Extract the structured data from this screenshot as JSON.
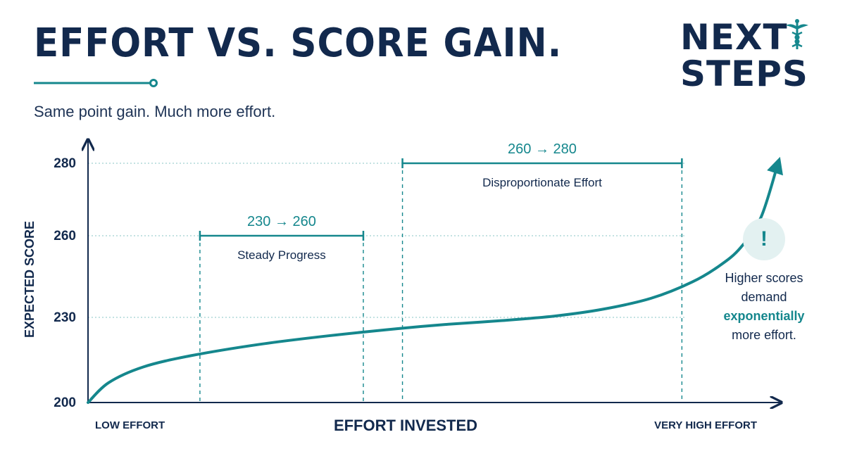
{
  "header": {
    "title": "EFFORT VS. SCORE GAIN.",
    "subtitle": "Same point gain. Much more effort."
  },
  "logo": {
    "line1": "NEXT",
    "line2": "STEPS",
    "icon": "caduceus-icon"
  },
  "note": {
    "icon_text": "!",
    "lines": [
      "Higher scores",
      "demand",
      "exponentially",
      "more effort."
    ],
    "accent_line_index": 2
  },
  "colors": {
    "navy": "#12294d",
    "teal": "#15878d",
    "grid": "#9fd0d0",
    "badge_bg": "#e3f1f1"
  },
  "chart_data": {
    "type": "line",
    "xlabel": "EFFORT INVESTED",
    "ylabel": "EXPECTED SCORE",
    "x_tick_labels": [
      "LOW EFFORT",
      "VERY HIGH EFFORT"
    ],
    "y_ticks": [
      200,
      230,
      260,
      280
    ],
    "xlim": [
      0,
      100
    ],
    "ylim": [
      200,
      290
    ],
    "grid": "dotted at y ticks",
    "series": [
      {
        "x": [
          0,
          3,
          8,
          15,
          25,
          35,
          45,
          52,
          60,
          68,
          75,
          82,
          88,
          92,
          95,
          98,
          100.5
        ],
        "y": [
          200,
          207,
          212.5,
          216.5,
          220.5,
          223.5,
          226,
          227.5,
          228.8,
          230.5,
          233,
          237,
          243,
          249,
          255.5,
          265,
          280
        ]
      }
    ],
    "annotations": [
      {
        "range_label": "230 → 260",
        "caption": "Steady Progress",
        "x_from": 16.3,
        "x_to": 40.1,
        "y": 260
      },
      {
        "range_label": "260 → 280",
        "caption": "Disproportionate Effort",
        "x_from": 45.8,
        "x_to": 86.5,
        "y": 280
      }
    ]
  }
}
